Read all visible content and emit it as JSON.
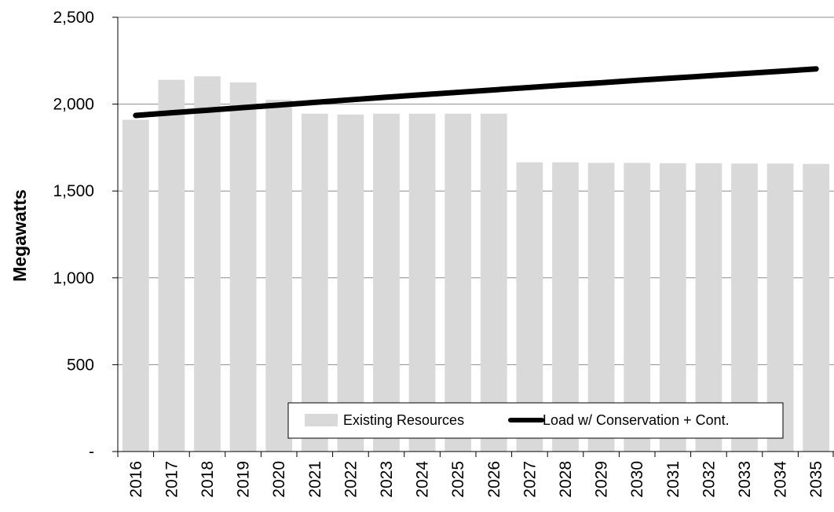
{
  "chart_data": {
    "type": "bar",
    "title": "",
    "xlabel": "",
    "ylabel": "Megawatts",
    "categories": [
      "2016",
      "2017",
      "2018",
      "2019",
      "2020",
      "2021",
      "2022",
      "2023",
      "2024",
      "2025",
      "2026",
      "2027",
      "2028",
      "2029",
      "2030",
      "2031",
      "2032",
      "2033",
      "2034",
      "2035"
    ],
    "ylim": [
      0,
      2500
    ],
    "yticks": [
      0,
      500,
      1000,
      1500,
      2000,
      2500
    ],
    "ytick_labels": [
      "-",
      "500",
      "1,000",
      "1,500",
      "2,000",
      "2,500"
    ],
    "grid": "horizontal",
    "legend_position": "bottom-right inside plot",
    "series": [
      {
        "name": "Existing Resources",
        "kind": "bar",
        "color": "#d9d9d9",
        "values": [
          1910,
          2140,
          2160,
          2125,
          2025,
          1945,
          1940,
          1945,
          1945,
          1945,
          1945,
          1665,
          1665,
          1662,
          1662,
          1660,
          1660,
          1658,
          1658,
          1656
        ]
      },
      {
        "name": "Load w/ Conservation + Cont.",
        "kind": "line",
        "color": "#000000",
        "values": [
          1935,
          1950,
          1965,
          1980,
          1995,
          2010,
          2025,
          2040,
          2054,
          2068,
          2082,
          2096,
          2110,
          2123,
          2137,
          2150,
          2163,
          2176,
          2189,
          2203
        ]
      }
    ]
  }
}
